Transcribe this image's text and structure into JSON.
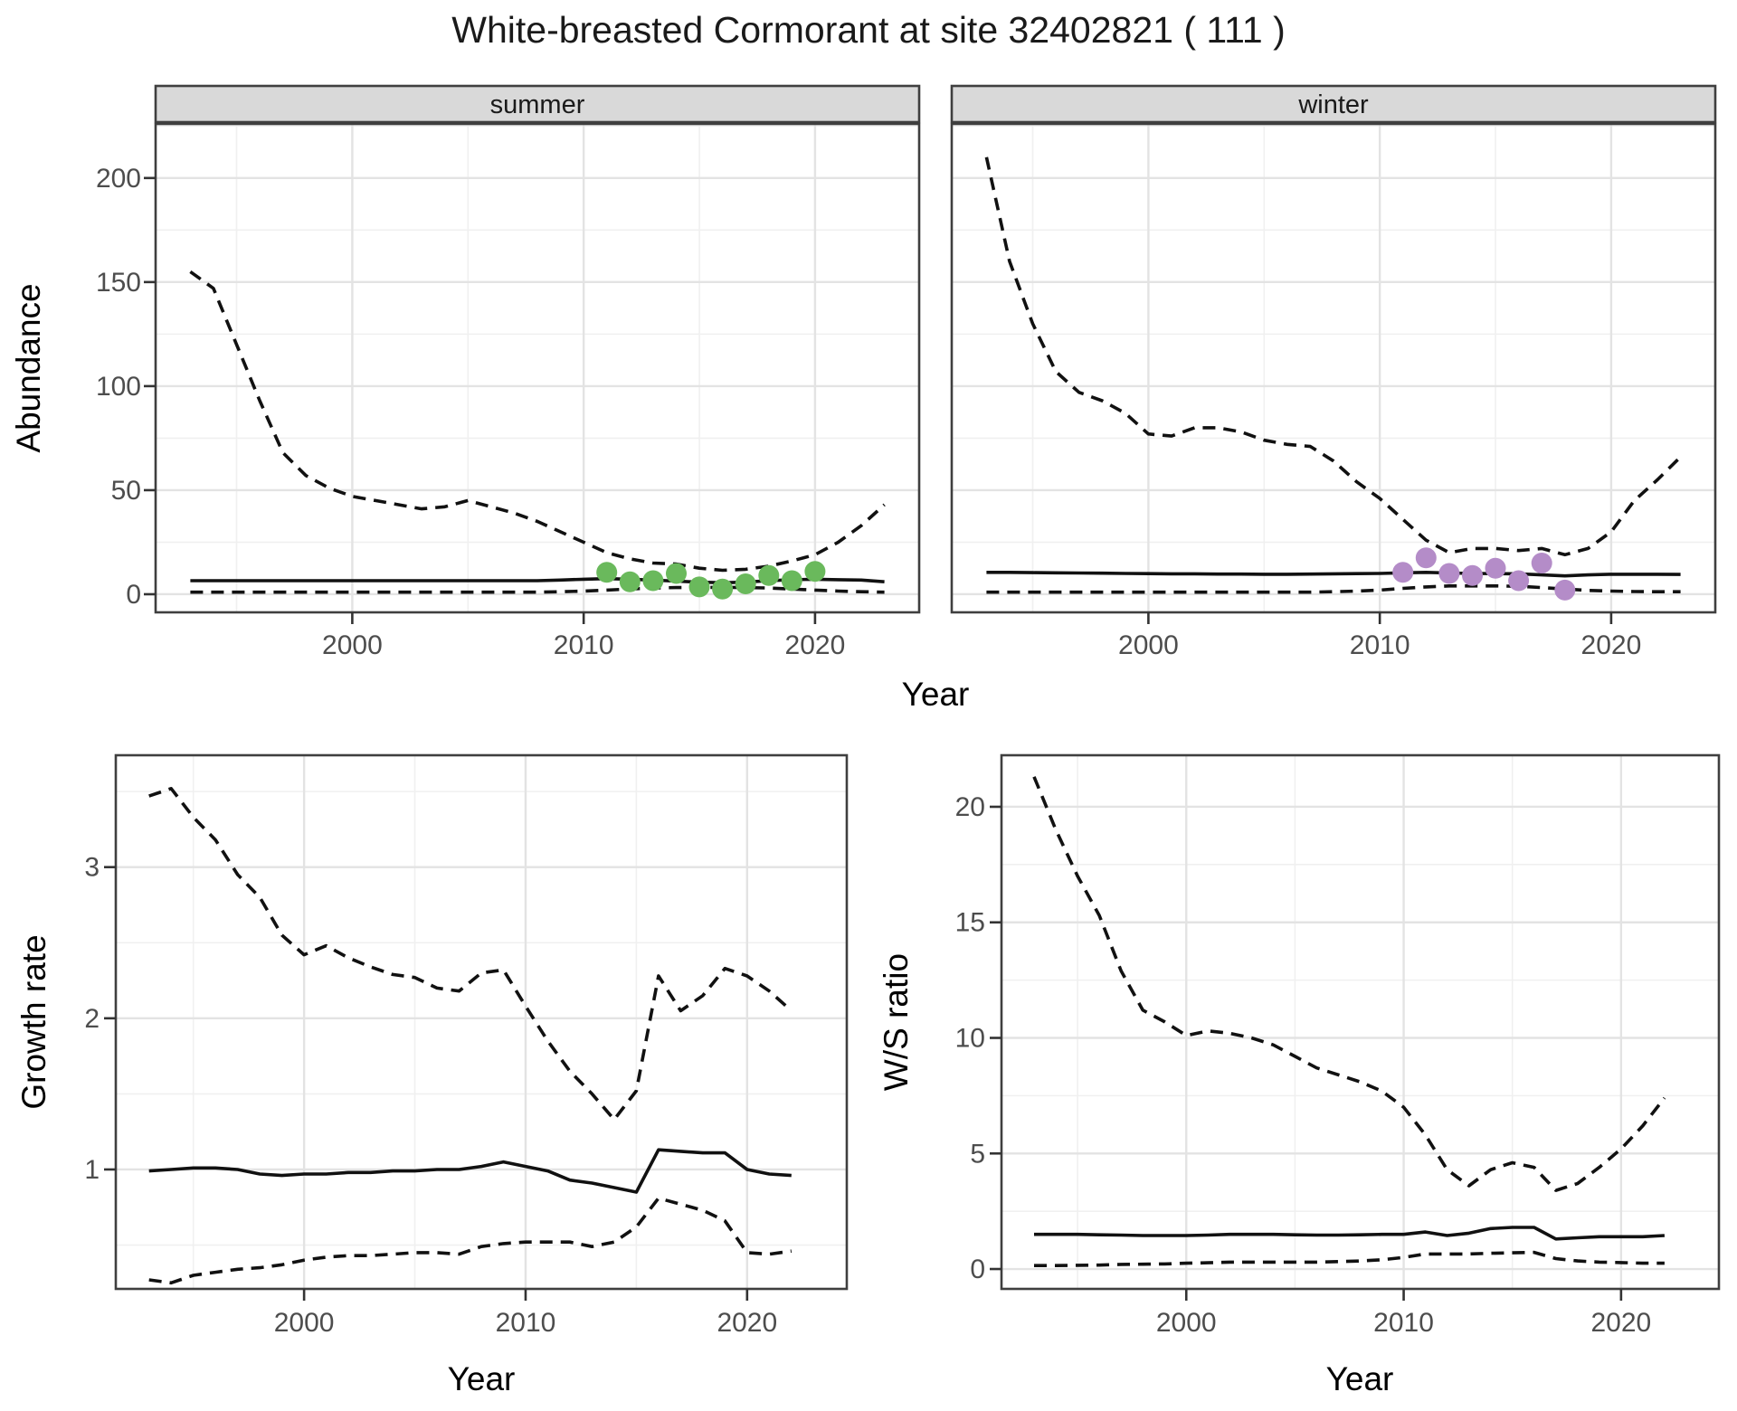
{
  "title": "White-breasted Cormorant at site 32402821 ( 111 )",
  "colors": {
    "summer_points": "#6ab95c",
    "winter_points": "#b48cc8",
    "line": "#111111",
    "strip_bg": "#d9d9d9",
    "strip_text": "#1a1a1a",
    "grid_major": "#e3e3e3",
    "grid_minor": "#f0f0f0",
    "panel_border": "#3f3f3f",
    "axis_text": "#4d4d4d",
    "axis_title": "#000000",
    "tick_mark": "#333333"
  },
  "axis_labels": {
    "x": "Year",
    "abundance": "Abundance",
    "growth": "Growth rate",
    "ws": "W/S ratio"
  },
  "facets": {
    "summer": "summer",
    "winter": "winter"
  },
  "chart_data": [
    {
      "id": "abundance_summer",
      "type": "line",
      "facet_label": "summer",
      "title": "Abundance - summer facet",
      "xlabel": "Year",
      "ylabel": "Abundance",
      "xlim": [
        1991.5,
        2024.5
      ],
      "ylim": [
        -8.7,
        226
      ],
      "xticks": [
        2000,
        2010,
        2020
      ],
      "xminor": [
        1995,
        2005,
        2015
      ],
      "yticks": [
        0,
        50,
        100,
        150,
        200
      ],
      "yminor": [
        25,
        75,
        125,
        175,
        225
      ],
      "grid": true,
      "legend": "none",
      "x": [
        1993,
        1994,
        1995,
        1996,
        1997,
        1998,
        1999,
        2000,
        2001,
        2002,
        2003,
        2004,
        2005,
        2006,
        2007,
        2008,
        2009,
        2010,
        2011,
        2012,
        2013,
        2014,
        2015,
        2016,
        2017,
        2018,
        2019,
        2020,
        2021,
        2022,
        2023
      ],
      "series": [
        {
          "name": "upper_ci",
          "style": "dashed",
          "values": [
            155,
            147,
            120,
            93,
            68,
            57,
            51,
            47,
            45,
            43,
            41,
            42,
            45,
            42,
            39,
            35,
            30,
            25,
            20,
            17,
            15,
            14.5,
            12.5,
            11.5,
            12,
            13.5,
            16,
            19,
            25,
            33,
            43
          ]
        },
        {
          "name": "median",
          "style": "solid",
          "values": [
            6.5,
            6.5,
            6.5,
            6.5,
            6.5,
            6.5,
            6.5,
            6.5,
            6.5,
            6.5,
            6.5,
            6.5,
            6.5,
            6.5,
            6.5,
            6.5,
            6.8,
            7.2,
            7.5,
            7.2,
            6.8,
            6.3,
            5.8,
            5.5,
            5.8,
            6.5,
            7,
            7.2,
            7,
            6.8,
            6
          ]
        },
        {
          "name": "lower_ci",
          "style": "dashed",
          "values": [
            1,
            1,
            1,
            1,
            1,
            1,
            1,
            1,
            1,
            1,
            1,
            1,
            1,
            1,
            1,
            1,
            1.2,
            1.5,
            2,
            2.5,
            3,
            3.2,
            3.3,
            3.3,
            3.2,
            3,
            2.5,
            2,
            1.5,
            1.2,
            1
          ]
        }
      ],
      "points": {
        "name": "observed_counts_summer",
        "color_key": "summer_points",
        "x": [
          2011,
          2012,
          2013,
          2014,
          2015,
          2016,
          2017,
          2018,
          2019,
          2020
        ],
        "y": [
          10.5,
          6,
          6.5,
          10,
          3.5,
          2.5,
          5,
          9,
          6.5,
          11
        ]
      }
    },
    {
      "id": "abundance_winter",
      "type": "line",
      "facet_label": "winter",
      "title": "Abundance - winter facet",
      "xlabel": "Year",
      "ylabel": "Abundance",
      "xlim": [
        1991.5,
        2024.5
      ],
      "ylim": [
        -8.7,
        226
      ],
      "xticks": [
        2000,
        2010,
        2020
      ],
      "xminor": [
        1995,
        2005,
        2015
      ],
      "yticks": [
        0,
        50,
        100,
        150,
        200
      ],
      "yminor": [
        25,
        75,
        125,
        175,
        225
      ],
      "grid": true,
      "legend": "none",
      "x": [
        1993,
        1994,
        1995,
        1996,
        1997,
        1998,
        1999,
        2000,
        2001,
        2002,
        2003,
        2004,
        2005,
        2006,
        2007,
        2008,
        2009,
        2010,
        2011,
        2012,
        2013,
        2014,
        2015,
        2016,
        2017,
        2018,
        2019,
        2020,
        2021,
        2022,
        2023
      ],
      "series": [
        {
          "name": "upper_ci",
          "style": "dashed",
          "values": [
            210,
            160,
            130,
            107,
            97,
            93,
            87,
            77,
            76,
            80,
            80,
            78,
            74,
            72,
            71,
            64,
            54,
            46,
            36,
            26,
            20,
            22,
            22,
            21,
            22,
            19,
            22,
            30,
            45,
            55,
            66
          ]
        },
        {
          "name": "median",
          "style": "solid",
          "values": [
            10.5,
            10.5,
            10.4,
            10.3,
            10.2,
            10.1,
            10,
            9.9,
            9.8,
            9.8,
            9.7,
            9.7,
            9.6,
            9.6,
            9.7,
            9.8,
            9.9,
            10,
            10.3,
            10.5,
            10.2,
            10,
            9.9,
            9.8,
            9.3,
            8.8,
            9.3,
            9.6,
            9.6,
            9.6,
            9.5
          ]
        },
        {
          "name": "lower_ci",
          "style": "dashed",
          "values": [
            1,
            1,
            1,
            1,
            1,
            1,
            1,
            1,
            1,
            1,
            1,
            1,
            1,
            1,
            1,
            1.2,
            1.5,
            2,
            2.8,
            3.5,
            4,
            4,
            4,
            3.8,
            3.2,
            2.5,
            1.8,
            1.5,
            1.3,
            1.2,
            1.2
          ]
        }
      ],
      "points": {
        "name": "observed_counts_winter",
        "color_key": "winter_points",
        "x": [
          2011,
          2012,
          2013,
          2014,
          2015,
          2016,
          2017,
          2018
        ],
        "y": [
          10.5,
          17.5,
          10,
          9,
          12.5,
          6.5,
          15,
          2
        ]
      }
    },
    {
      "id": "growth_rate",
      "type": "line",
      "facet_label": "",
      "title": "Growth rate",
      "xlabel": "Year",
      "ylabel": "Growth rate",
      "xlim": [
        1991.5,
        2024.5
      ],
      "ylim": [
        0.21,
        3.74
      ],
      "xticks": [
        2000,
        2010,
        2020
      ],
      "xminor": [
        1995,
        2005,
        2015
      ],
      "yticks": [
        1,
        2,
        3
      ],
      "yminor": [
        0.5,
        1.5,
        2.5,
        3.5
      ],
      "grid": true,
      "legend": "none",
      "x": [
        1993,
        1994,
        1995,
        1996,
        1997,
        1998,
        1999,
        2000,
        2001,
        2002,
        2003,
        2004,
        2005,
        2006,
        2007,
        2008,
        2009,
        2010,
        2011,
        2012,
        2013,
        2014,
        2015,
        2016,
        2017,
        2018,
        2019,
        2020,
        2021,
        2022
      ],
      "series": [
        {
          "name": "upper_ci",
          "style": "dashed",
          "values": [
            3.47,
            3.52,
            3.33,
            3.18,
            2.95,
            2.8,
            2.55,
            2.42,
            2.48,
            2.4,
            2.34,
            2.29,
            2.27,
            2.2,
            2.18,
            2.3,
            2.32,
            2.08,
            1.85,
            1.65,
            1.5,
            1.33,
            1.52,
            2.28,
            2.05,
            2.15,
            2.33,
            2.28,
            2.18,
            2.05
          ]
        },
        {
          "name": "median",
          "style": "solid",
          "values": [
            0.99,
            1.0,
            1.01,
            1.01,
            1.0,
            0.97,
            0.96,
            0.97,
            0.97,
            0.98,
            0.98,
            0.99,
            0.99,
            1.0,
            1.0,
            1.02,
            1.05,
            1.02,
            0.99,
            0.93,
            0.91,
            0.88,
            0.85,
            1.13,
            1.12,
            1.11,
            1.11,
            1.0,
            0.97,
            0.96
          ]
        },
        {
          "name": "lower_ci",
          "style": "dashed",
          "values": [
            0.27,
            0.25,
            0.3,
            0.32,
            0.34,
            0.35,
            0.37,
            0.4,
            0.42,
            0.43,
            0.43,
            0.44,
            0.45,
            0.45,
            0.44,
            0.49,
            0.51,
            0.52,
            0.52,
            0.52,
            0.49,
            0.52,
            0.62,
            0.81,
            0.77,
            0.73,
            0.66,
            0.45,
            0.44,
            0.46
          ]
        }
      ],
      "points": null
    },
    {
      "id": "ws_ratio",
      "type": "line",
      "facet_label": "",
      "title": "W/S ratio",
      "xlabel": "Year",
      "ylabel": "W/S ratio",
      "xlim": [
        1991.5,
        2024.5
      ],
      "ylim": [
        -0.86,
        22.23
      ],
      "xticks": [
        2000,
        2010,
        2020
      ],
      "xminor": [
        1995,
        2005,
        2015
      ],
      "yticks": [
        0,
        5,
        10,
        15,
        20
      ],
      "yminor": [
        2.5,
        7.5,
        12.5,
        17.5
      ],
      "grid": true,
      "legend": "none",
      "x": [
        1993,
        1994,
        1995,
        1996,
        1997,
        1998,
        1999,
        2000,
        2001,
        2002,
        2003,
        2004,
        2005,
        2006,
        2007,
        2008,
        2009,
        2010,
        2011,
        2012,
        2013,
        2014,
        2015,
        2016,
        2017,
        2018,
        2019,
        2020,
        2021,
        2022
      ],
      "series": [
        {
          "name": "upper_ci",
          "style": "dashed",
          "values": [
            21.3,
            19.0,
            17.0,
            15.3,
            12.9,
            11.2,
            10.7,
            10.1,
            10.3,
            10.2,
            10.0,
            9.7,
            9.2,
            8.7,
            8.4,
            8.1,
            7.7,
            7.0,
            5.8,
            4.3,
            3.6,
            4.3,
            4.6,
            4.4,
            3.4,
            3.7,
            4.4,
            5.2,
            6.2,
            7.4
          ]
        },
        {
          "name": "median",
          "style": "solid",
          "values": [
            1.5,
            1.5,
            1.5,
            1.48,
            1.47,
            1.45,
            1.45,
            1.45,
            1.47,
            1.5,
            1.5,
            1.5,
            1.48,
            1.47,
            1.47,
            1.48,
            1.5,
            1.5,
            1.6,
            1.45,
            1.55,
            1.75,
            1.8,
            1.8,
            1.3,
            1.35,
            1.4,
            1.4,
            1.4,
            1.45
          ]
        },
        {
          "name": "lower_ci",
          "style": "dashed",
          "values": [
            0.15,
            0.15,
            0.16,
            0.17,
            0.2,
            0.21,
            0.22,
            0.25,
            0.27,
            0.3,
            0.3,
            0.3,
            0.3,
            0.3,
            0.32,
            0.35,
            0.4,
            0.5,
            0.65,
            0.65,
            0.65,
            0.68,
            0.7,
            0.72,
            0.45,
            0.35,
            0.3,
            0.28,
            0.25,
            0.25
          ]
        }
      ],
      "points": null
    }
  ]
}
